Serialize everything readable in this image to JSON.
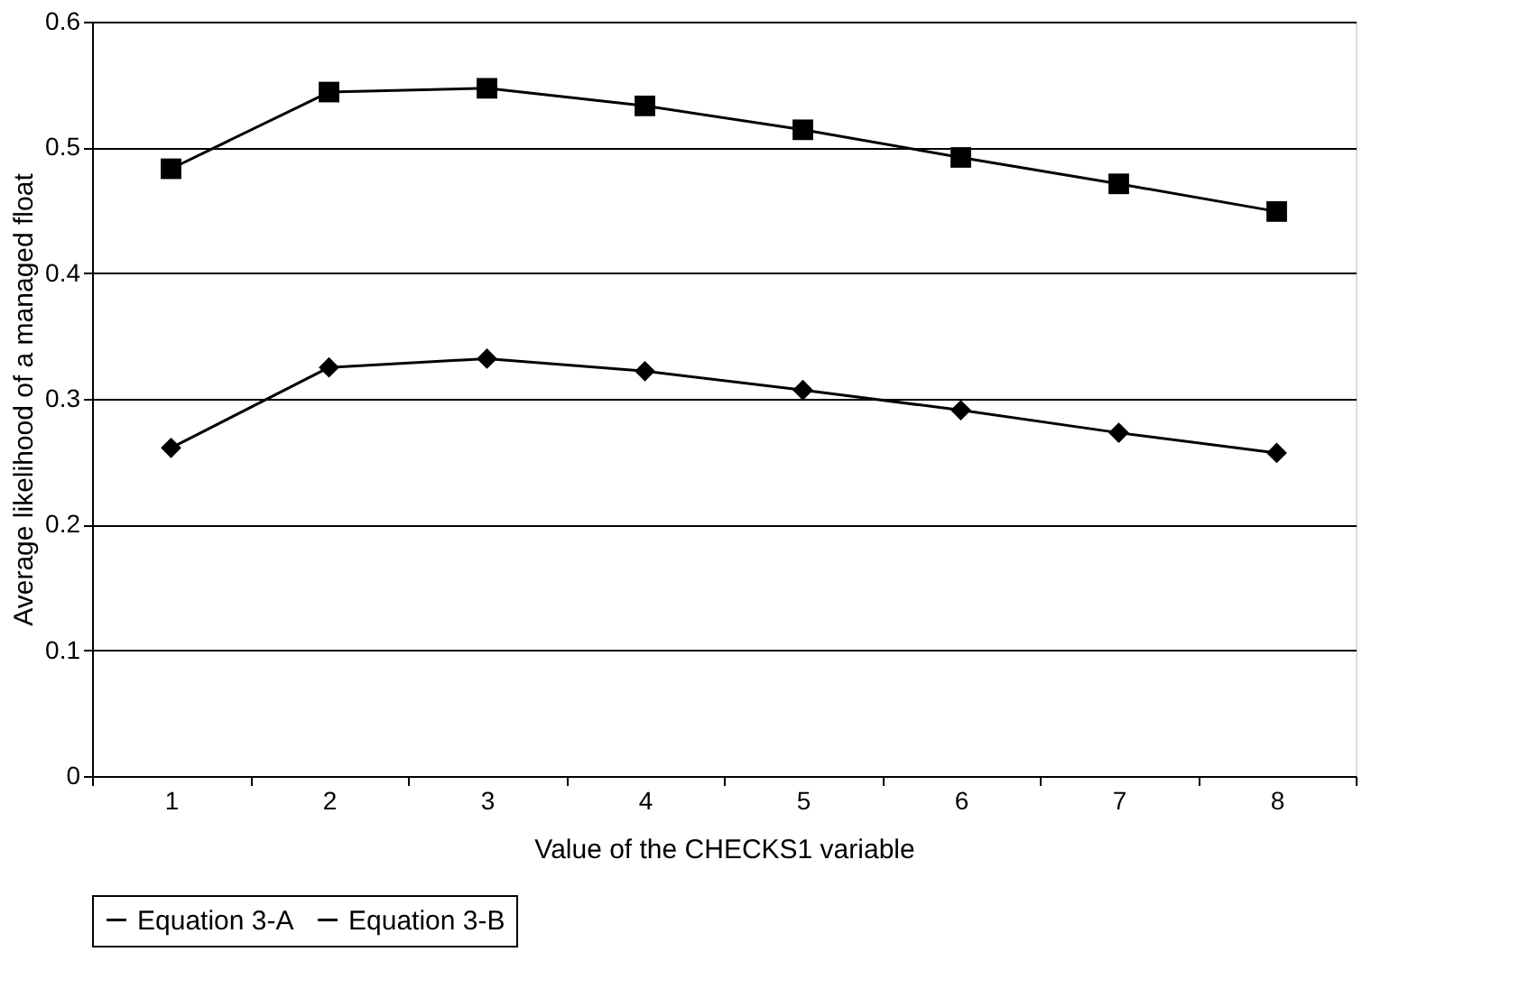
{
  "chart_data": {
    "type": "line",
    "xlabel": "Value of the CHECKS1 variable",
    "ylabel": "Average likelihood of a managed float",
    "categories": [
      "1",
      "2",
      "3",
      "4",
      "5",
      "6",
      "7",
      "8"
    ],
    "series": [
      {
        "name": "Equation 3-A",
        "color": "#000000",
        "marker": "diamond",
        "values": [
          0.261,
          0.325,
          0.332,
          0.322,
          0.307,
          0.291,
          0.273,
          0.257
        ]
      },
      {
        "name": "Equation 3-B",
        "color": "#000000",
        "marker": "square",
        "values": [
          0.483,
          0.544,
          0.547,
          0.533,
          0.514,
          0.492,
          0.471,
          0.449
        ]
      }
    ],
    "ylim": [
      0,
      0.6
    ],
    "yticks": [
      0,
      0.1,
      0.2,
      0.3,
      0.4,
      0.5,
      0.6
    ],
    "grid": "y",
    "legend": "bottom",
    "line_style": "solid"
  }
}
